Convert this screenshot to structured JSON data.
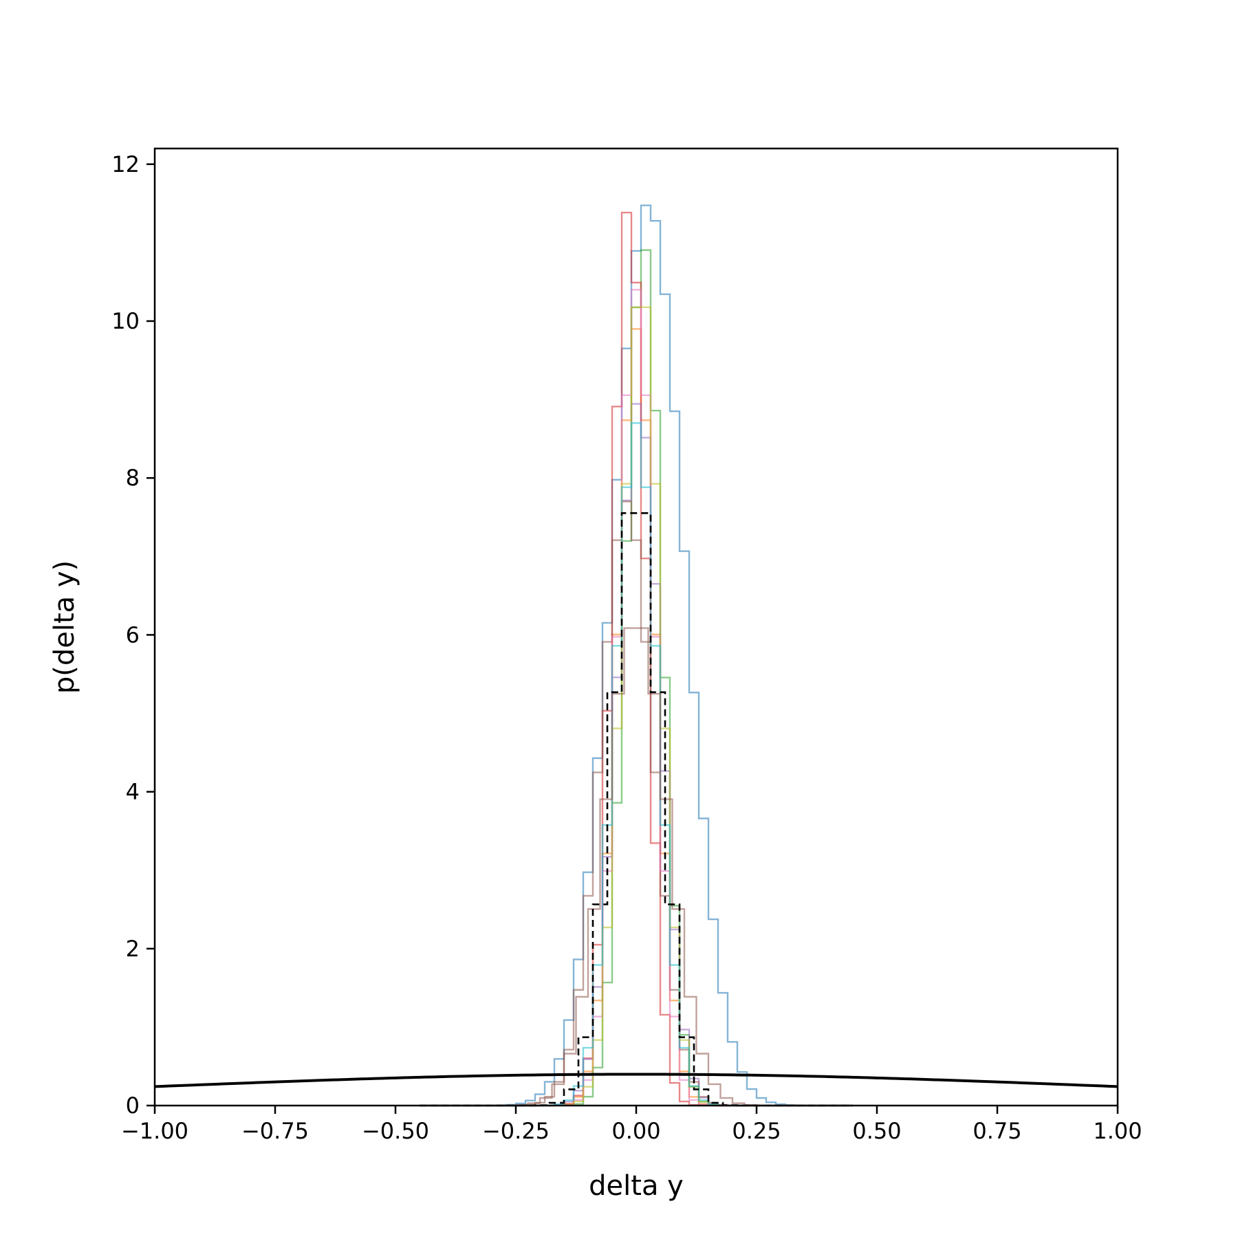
{
  "chart_data": {
    "type": "histogram",
    "xlabel": "delta y",
    "ylabel": "p(delta y)",
    "xlim": [
      -1.0,
      1.0
    ],
    "ylim": [
      0,
      12.2
    ],
    "x_ticks": [
      -1.0,
      -0.75,
      -0.5,
      -0.25,
      0.0,
      0.25,
      0.5,
      0.75,
      1.0
    ],
    "x_tick_labels": [
      "−1.00",
      "−0.75",
      "−0.50",
      "−0.25",
      "0.00",
      "0.25",
      "0.50",
      "0.75",
      "1.00"
    ],
    "y_ticks": [
      0,
      2,
      4,
      6,
      8,
      10,
      12
    ],
    "y_tick_labels": [
      "0",
      "2",
      "4",
      "6",
      "8",
      "10",
      "12"
    ],
    "grid": false,
    "legend": "none",
    "series": [
      {
        "color": "#1f77b4",
        "opacity": 0.55,
        "style": "step",
        "mean": 0.025,
        "std": 0.076,
        "peak": 11.5,
        "bin_width": 0.02
      },
      {
        "color": "#ff7f0e",
        "opacity": 0.55,
        "style": "step",
        "mean": 0.0,
        "std": 0.04,
        "peak": 9.9,
        "bin_width": 0.02
      },
      {
        "color": "#2ca02c",
        "opacity": 0.55,
        "style": "step",
        "mean": 0.015,
        "std": 0.038,
        "peak": 11.0,
        "bin_width": 0.02
      },
      {
        "color": "#d62728",
        "opacity": 0.55,
        "style": "step",
        "mean": -0.015,
        "std": 0.035,
        "peak": 11.5,
        "bin_width": 0.02
      },
      {
        "color": "#9467bd",
        "opacity": 0.55,
        "style": "step",
        "mean": 0.005,
        "std": 0.045,
        "peak": 9.0,
        "bin_width": 0.02
      },
      {
        "color": "#8c564b",
        "opacity": 0.55,
        "style": "step",
        "mean": -0.02,
        "std": 0.055,
        "peak": 7.7,
        "bin_width": 0.02
      },
      {
        "color": "#e377c2",
        "opacity": 0.55,
        "style": "step",
        "mean": 0.0,
        "std": 0.038,
        "peak": 10.4,
        "bin_width": 0.02
      },
      {
        "color": "#bcbd22",
        "opacity": 0.55,
        "style": "step",
        "mean": 0.01,
        "std": 0.04,
        "peak": 10.5,
        "bin_width": 0.02
      },
      {
        "color": "#17becf",
        "opacity": 0.55,
        "style": "step",
        "mean": 0.0,
        "std": 0.045,
        "peak": 8.7,
        "bin_width": 0.02
      },
      {
        "color": "#8c564b",
        "opacity": 0.55,
        "style": "step",
        "mean": 0.0,
        "std": 0.065,
        "peak": 6.2,
        "bin_width": 0.025
      },
      {
        "color": "#000000",
        "opacity": 1.0,
        "style": "dashed-step",
        "mean": 0.0,
        "std": 0.05,
        "peak": 7.9,
        "bin_width": 0.03
      }
    ],
    "reference_curve": {
      "color": "#000000",
      "type": "normal-pdf",
      "mean": 0.0,
      "std": 1.0
    }
  }
}
